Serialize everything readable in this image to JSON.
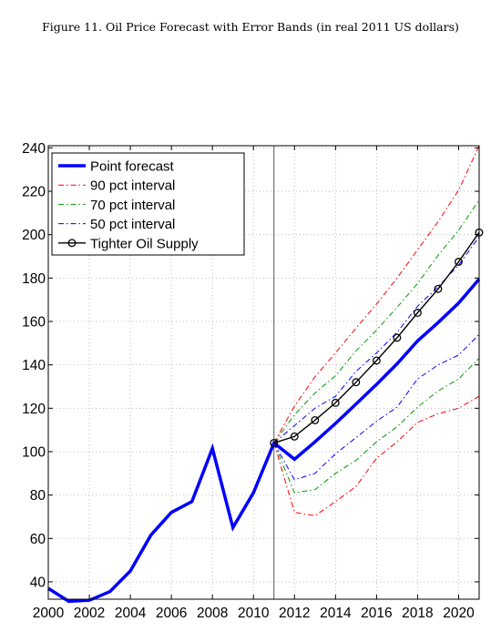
{
  "caption": "Figure 11. Oil Price Forecast with Error Bands (in real 2011 US dollars)",
  "chart_data": {
    "type": "line",
    "xlim": [
      2000,
      2021
    ],
    "ylim": [
      32,
      241
    ],
    "x_ticks": [
      2000,
      2002,
      2004,
      2006,
      2008,
      2010,
      2012,
      2014,
      2016,
      2018,
      2020
    ],
    "y_ticks": [
      40,
      60,
      80,
      100,
      120,
      140,
      160,
      180,
      200,
      220,
      240
    ],
    "grid": true,
    "vline_x": 2011,
    "legend_position": "top-left",
    "series": [
      {
        "name": "Point forecast",
        "color": "#0000ff",
        "style": "solid",
        "x": [
          2000,
          2001,
          2002,
          2003,
          2004,
          2005,
          2006,
          2007,
          2008,
          2009,
          2010,
          2011,
          2012,
          2013,
          2014,
          2015,
          2016,
          2017,
          2018,
          2019,
          2020,
          2021
        ],
        "y": [
          37,
          31,
          31.5,
          35.5,
          45,
          61.5,
          72,
          77,
          101.5,
          65,
          81,
          104,
          96.5,
          104.5,
          113,
          122,
          131,
          140.5,
          151,
          159.5,
          168.5,
          179.5
        ]
      },
      {
        "name": "90 pct interval",
        "color": "#ff0000",
        "style": "dashdot",
        "band": true,
        "x": [
          2011,
          2012,
          2013,
          2014,
          2015,
          2016,
          2017,
          2018,
          2019,
          2020,
          2021
        ],
        "upper": [
          104,
          121,
          134.5,
          145.5,
          157,
          168,
          180,
          193,
          206,
          220.5,
          241
        ],
        "lower": [
          104,
          72,
          70.5,
          77,
          84,
          97,
          104.5,
          113.5,
          117.5,
          120,
          125.5
        ]
      },
      {
        "name": "70 pct interval",
        "color": "#009900",
        "style": "dashdot",
        "band": true,
        "x": [
          2011,
          2012,
          2013,
          2014,
          2015,
          2016,
          2017,
          2018,
          2019,
          2020,
          2021
        ],
        "upper": [
          104,
          117,
          127,
          135,
          146.5,
          156,
          166.5,
          177.5,
          190.5,
          202,
          216
        ],
        "lower": [
          104,
          81,
          82.5,
          90,
          96,
          104.5,
          111.5,
          120.5,
          128,
          133.5,
          143
        ]
      },
      {
        "name": "50 pct interval",
        "color": "#0000ff",
        "style": "dashdot",
        "band": true,
        "x": [
          2011,
          2012,
          2013,
          2014,
          2015,
          2016,
          2017,
          2018,
          2019,
          2020,
          2021
        ],
        "upper": [
          104,
          112,
          120,
          125.5,
          137,
          145.5,
          155,
          167,
          176,
          186,
          199
        ],
        "lower": [
          104,
          87,
          90,
          99,
          106.5,
          114,
          120.5,
          133.5,
          140,
          144.5,
          154
        ]
      },
      {
        "name": "Tighter Oil Supply",
        "color": "#000000",
        "style": "solid",
        "marker": "circle",
        "x": [
          2011,
          2012,
          2013,
          2014,
          2015,
          2016,
          2017,
          2018,
          2019,
          2020,
          2021
        ],
        "y": [
          104,
          107,
          114.5,
          122.5,
          132,
          142,
          152.5,
          164,
          175,
          187.5,
          201
        ]
      }
    ]
  }
}
